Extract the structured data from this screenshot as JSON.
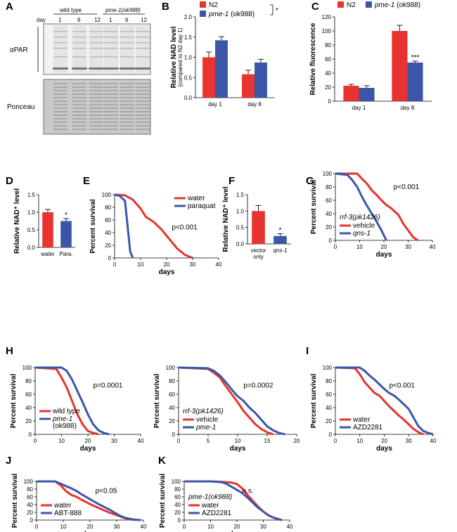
{
  "colors": {
    "red": "#e8332f",
    "blue": "#3b56a8",
    "err": "#222222"
  },
  "panel_letters": [
    "A",
    "B",
    "C",
    "D",
    "E",
    "F",
    "G",
    "H",
    "I",
    "J",
    "K"
  ],
  "blot": {
    "group_labels": [
      "wild type",
      "pme-1(ok988)"
    ],
    "day_label": "day",
    "days": [
      "1",
      "6",
      "12",
      "1",
      "6",
      "12"
    ],
    "blot_labels": [
      "αPAR",
      "Ponceau"
    ]
  },
  "chart_data": [
    {
      "id": "B",
      "type": "bar",
      "ylabel": "Relative NAD level",
      "ylabel2": "(compared to N2 day 1)",
      "categories": [
        "day 1",
        "day 8"
      ],
      "ylim": [
        0,
        2.0
      ],
      "yticks": [
        "0.0",
        "0.5",
        "1.0",
        "1.5",
        "2.0"
      ],
      "series": [
        {
          "name": "N2",
          "values": [
            1.0,
            0.58
          ],
          "errors": [
            0.13,
            0.1
          ]
        },
        {
          "name": "pme-1 (ok988)",
          "values": [
            1.42,
            0.87
          ],
          "errors": [
            0.09,
            0.08
          ]
        }
      ],
      "annotation": "*"
    },
    {
      "id": "C",
      "type": "bar",
      "ylabel": "Relative fluorescence",
      "categories": [
        "day 1",
        "day 8"
      ],
      "ylim": [
        0,
        120
      ],
      "yticks": [
        "0",
        "20",
        "40",
        "60",
        "80",
        "100",
        "120"
      ],
      "series": [
        {
          "name": "N2",
          "values": [
            22,
            100
          ],
          "errors": [
            2,
            8
          ]
        },
        {
          "name": "pme-1 (ok988)",
          "values": [
            19,
            55
          ],
          "errors": [
            3,
            2
          ]
        }
      ],
      "annotation": "***"
    },
    {
      "id": "D",
      "type": "bar",
      "ylabel": "Relative NAD⁺ level",
      "categories": [
        "water",
        "Para."
      ],
      "ylim": [
        0,
        1.5
      ],
      "yticks": [
        "0.0",
        "0.5",
        "1.0",
        "1.5"
      ],
      "values": [
        1.0,
        0.75
      ],
      "errors": [
        0.08,
        0.07
      ],
      "annotation": "*"
    },
    {
      "id": "E",
      "type": "line",
      "ylabel": "Percent survival",
      "xlabel": "days",
      "xlim": [
        0,
        40
      ],
      "ylim": [
        0,
        100
      ],
      "xticks": [
        "0",
        "10",
        "20",
        "30",
        "40"
      ],
      "yticks": [
        "0",
        "20",
        "40",
        "60",
        "80",
        "100"
      ],
      "series": [
        {
          "name": "water",
          "x": [
            0,
            4,
            7,
            10,
            12,
            15,
            18,
            21,
            24,
            27,
            30
          ],
          "y": [
            100,
            99,
            92,
            78,
            65,
            57,
            45,
            30,
            15,
            5,
            0
          ]
        },
        {
          "name": "paraquat",
          "x": [
            0,
            2,
            4,
            5,
            6,
            7
          ],
          "y": [
            100,
            98,
            90,
            50,
            10,
            0
          ]
        }
      ],
      "annotation": "p<0.001"
    },
    {
      "id": "F",
      "type": "bar",
      "ylabel": "Relative NAD⁺ level",
      "categories": [
        "vector only",
        "qns-1"
      ],
      "ylim": [
        0,
        1.5
      ],
      "yticks": [
        "0.0",
        "0.5",
        "1.0",
        "1.5"
      ],
      "values": [
        1.0,
        0.24
      ],
      "errors": [
        0.17,
        0.07
      ],
      "annotation": "*"
    },
    {
      "id": "G",
      "type": "line",
      "ylabel": "Percent survival",
      "xlabel": "days",
      "xlim": [
        0,
        40
      ],
      "ylim": [
        0,
        100
      ],
      "xticks": [
        "0",
        "10",
        "20",
        "30",
        "40"
      ],
      "yticks": [
        "0",
        "20",
        "40",
        "60",
        "80",
        "100"
      ],
      "legend_title": "rrf-3(pk1426)",
      "series": [
        {
          "name": "vehicle",
          "x": [
            0,
            9,
            11,
            13,
            15,
            17,
            19,
            21,
            23,
            26,
            28,
            30,
            32,
            34
          ],
          "y": [
            100,
            100,
            92,
            85,
            75,
            68,
            60,
            53,
            48,
            38,
            25,
            15,
            5,
            0
          ]
        },
        {
          "name": "qns-1",
          "x": [
            0,
            5,
            7,
            9,
            11,
            13,
            15,
            17,
            19,
            21
          ],
          "y": [
            100,
            98,
            90,
            80,
            65,
            52,
            40,
            28,
            15,
            0
          ]
        }
      ],
      "annotation": "p<0.001"
    },
    {
      "id": "H1",
      "type": "line",
      "ylabel": "Percent survival",
      "xlabel": "days",
      "xlim": [
        0,
        40
      ],
      "ylim": [
        0,
        100
      ],
      "xticks": [
        "0",
        "10",
        "20",
        "30",
        "40"
      ],
      "yticks": [
        "0",
        "20",
        "40",
        "60",
        "80",
        "100"
      ],
      "series": [
        {
          "name": "wild type",
          "x": [
            0,
            8,
            10,
            12,
            14,
            16,
            18,
            20,
            22,
            24
          ],
          "y": [
            100,
            98,
            85,
            70,
            50,
            30,
            15,
            5,
            2,
            0
          ]
        },
        {
          "name": "pme-1 (ok988)",
          "x": [
            0,
            10,
            12,
            14,
            16,
            18,
            20,
            22,
            24,
            26,
            28
          ],
          "y": [
            100,
            100,
            95,
            82,
            65,
            48,
            30,
            15,
            6,
            2,
            0
          ]
        }
      ],
      "annotation": "p=0.0001"
    },
    {
      "id": "H2",
      "type": "line",
      "ylabel": "Percent survival",
      "xlabel": "days",
      "xlim": [
        0,
        20
      ],
      "ylim": [
        0,
        100
      ],
      "xticks": [
        "0",
        "5",
        "10",
        "15",
        "20"
      ],
      "yticks": [
        "0",
        "20",
        "40",
        "60",
        "80",
        "100"
      ],
      "legend_title": "rrf-3(pk1426)",
      "series": [
        {
          "name": "vehicle",
          "x": [
            0,
            5,
            6,
            7,
            8,
            9,
            10,
            11,
            12,
            13,
            14,
            15,
            16
          ],
          "y": [
            100,
            98,
            92,
            85,
            72,
            60,
            48,
            35,
            25,
            15,
            8,
            3,
            0
          ]
        },
        {
          "name": "pme-1",
          "x": [
            0,
            5,
            6,
            7,
            8,
            9,
            10,
            11,
            12,
            13,
            14,
            15,
            16,
            17,
            18
          ],
          "y": [
            100,
            99,
            95,
            88,
            78,
            67,
            57,
            50,
            40,
            32,
            22,
            12,
            6,
            2,
            0
          ]
        }
      ],
      "annotation": "p=0.0002"
    },
    {
      "id": "I",
      "type": "line",
      "ylabel": "Percent survival",
      "xlabel": "days",
      "xlim": [
        0,
        40
      ],
      "ylim": [
        0,
        100
      ],
      "xticks": [
        "0",
        "10",
        "20",
        "30",
        "40"
      ],
      "yticks": [
        "0",
        "20",
        "40",
        "60",
        "80",
        "100"
      ],
      "series": [
        {
          "name": "water",
          "x": [
            0,
            8,
            10,
            12,
            14,
            16,
            18,
            20,
            22,
            24,
            26,
            28,
            30,
            32,
            34,
            36
          ],
          "y": [
            100,
            99,
            90,
            78,
            70,
            62,
            58,
            50,
            42,
            35,
            28,
            22,
            15,
            8,
            3,
            0
          ]
        },
        {
          "name": "AZD2281",
          "x": [
            0,
            10,
            12,
            14,
            16,
            18,
            20,
            22,
            24,
            26,
            28,
            30,
            32,
            34,
            36,
            38,
            40
          ],
          "y": [
            100,
            100,
            95,
            88,
            82,
            75,
            68,
            62,
            58,
            52,
            45,
            38,
            25,
            12,
            5,
            2,
            0
          ]
        }
      ],
      "annotation": "p<0.001"
    },
    {
      "id": "J",
      "type": "line",
      "ylabel": "Percent survival",
      "xlabel": "days",
      "xlim": [
        0,
        40
      ],
      "ylim": [
        0,
        100
      ],
      "xticks": [
        "0",
        "10",
        "20",
        "30",
        "40"
      ],
      "yticks": [
        "0",
        "20",
        "40",
        "60",
        "80",
        "100"
      ],
      "series": [
        {
          "name": "water",
          "x": [
            0,
            7,
            9,
            11,
            13,
            15,
            17,
            19,
            21,
            23,
            25,
            27,
            29,
            31,
            33,
            35,
            37
          ],
          "y": [
            100,
            100,
            90,
            75,
            65,
            60,
            52,
            45,
            38,
            32,
            26,
            20,
            15,
            10,
            5,
            2,
            0
          ]
        },
        {
          "name": "ABT-888",
          "x": [
            0,
            7,
            9,
            11,
            13,
            15,
            17,
            19,
            21,
            23,
            25,
            27,
            29,
            31,
            33,
            35,
            37,
            39
          ],
          "y": [
            100,
            100,
            94,
            88,
            82,
            75,
            66,
            58,
            50,
            42,
            35,
            28,
            20,
            12,
            6,
            3,
            1,
            0
          ]
        }
      ],
      "annotation": "p<0.05"
    },
    {
      "id": "K",
      "type": "line",
      "ylabel": "Percent survival",
      "xlabel": "days",
      "xlim": [
        0,
        40
      ],
      "ylim": [
        0,
        100
      ],
      "xticks": [
        "0",
        "10",
        "20",
        "30",
        "40"
      ],
      "yticks": [
        "0",
        "20",
        "40",
        "60",
        "80",
        "100"
      ],
      "legend_title": "pme-1(ok988)",
      "series": [
        {
          "name": "water",
          "x": [
            0,
            10,
            14,
            18,
            20,
            22,
            24,
            26,
            28,
            30,
            32,
            34,
            36,
            37
          ],
          "y": [
            100,
            100,
            99,
            97,
            93,
            82,
            65,
            50,
            35,
            22,
            12,
            6,
            2,
            0
          ]
        },
        {
          "name": "AZD2281",
          "x": [
            0,
            10,
            14,
            16,
            18,
            20,
            22,
            24,
            26,
            28,
            30,
            32,
            34,
            36,
            37
          ],
          "y": [
            100,
            100,
            98,
            94,
            86,
            78,
            70,
            58,
            45,
            32,
            22,
            12,
            6,
            2,
            0
          ]
        }
      ],
      "annotation": "n.s."
    }
  ]
}
